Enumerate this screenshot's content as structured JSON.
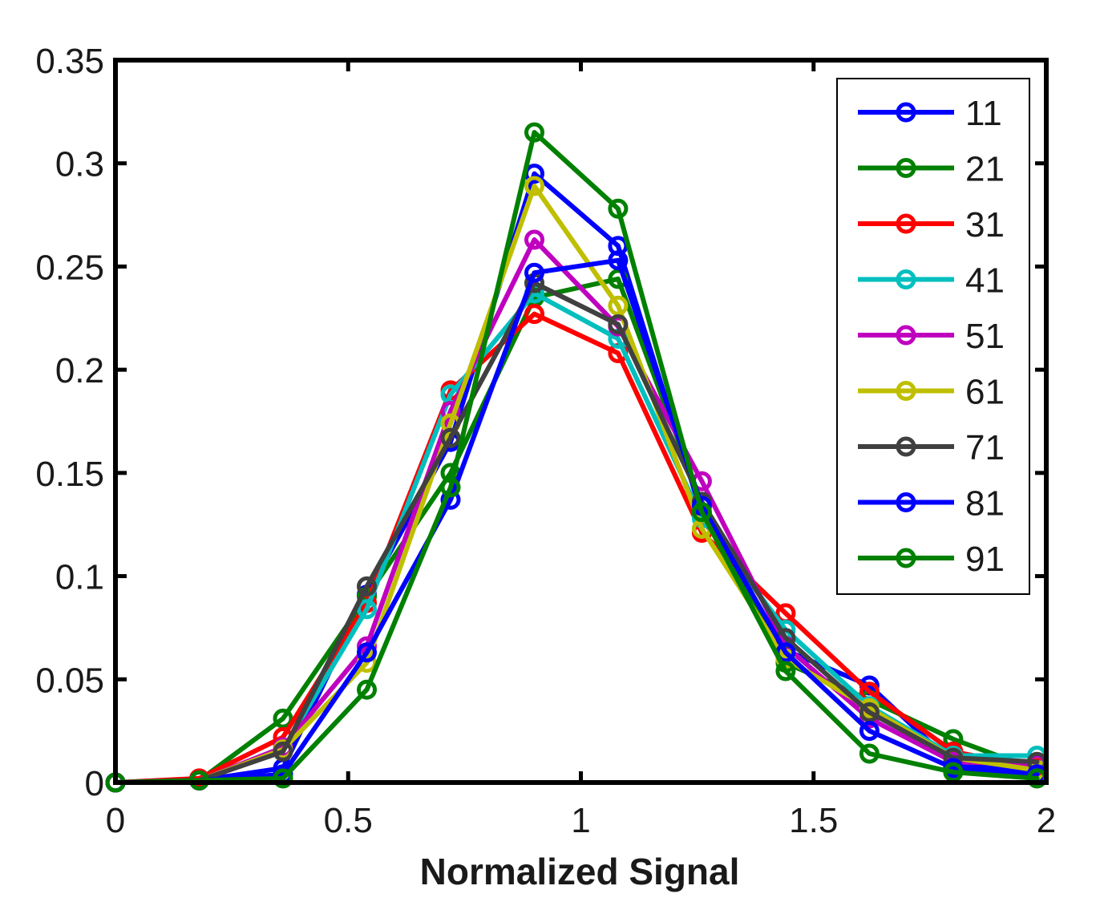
{
  "chart_data": {
    "type": "line",
    "title": "",
    "xlabel": "Normalized Signal",
    "ylabel": "",
    "xlim": [
      0,
      2
    ],
    "ylim": [
      0,
      0.35
    ],
    "xticks": [
      0,
      0.5,
      1,
      1.5,
      2
    ],
    "xtick_labels": [
      "0",
      "0.5",
      "1",
      "1.5",
      "2"
    ],
    "yticks": [
      0,
      0.05,
      0.1,
      0.15,
      0.2,
      0.25,
      0.3,
      0.35
    ],
    "ytick_labels": [
      "0",
      "0.05",
      "0.1",
      "0.15",
      "0.2",
      "0.25",
      "0.3",
      "0.35"
    ],
    "grid": false,
    "legend_position": "top-right",
    "x": [
      0,
      0.18,
      0.36,
      0.54,
      0.72,
      0.9,
      1.08,
      1.26,
      1.44,
      1.62,
      1.8,
      1.98
    ],
    "series": [
      {
        "name": "11",
        "color": "#0000ff",
        "values": [
          0,
          0.001,
          0.007,
          0.091,
          0.165,
          0.295,
          0.26,
          0.13,
          0.064,
          0.047,
          0.009,
          0.006
        ]
      },
      {
        "name": "21",
        "color": "#008000",
        "values": [
          0,
          0.001,
          0.031,
          0.09,
          0.15,
          0.235,
          0.244,
          0.135,
          0.058,
          0.04,
          0.021,
          0.006
        ]
      },
      {
        "name": "31",
        "color": "#ff0000",
        "values": [
          0,
          0.002,
          0.022,
          0.087,
          0.19,
          0.227,
          0.208,
          0.121,
          0.082,
          0.044,
          0.015,
          0.007
        ]
      },
      {
        "name": "41",
        "color": "#00bfbf",
        "values": [
          0,
          0.001,
          0.016,
          0.084,
          0.188,
          0.237,
          0.215,
          0.128,
          0.074,
          0.037,
          0.013,
          0.013
        ]
      },
      {
        "name": "51",
        "color": "#bf00bf",
        "values": [
          0,
          0.001,
          0.017,
          0.066,
          0.18,
          0.263,
          0.221,
          0.146,
          0.066,
          0.031,
          0.01,
          0.009
        ]
      },
      {
        "name": "61",
        "color": "#bfbf00",
        "values": [
          0,
          0.001,
          0.016,
          0.058,
          0.174,
          0.289,
          0.231,
          0.123,
          0.06,
          0.036,
          0.012,
          0.006
        ]
      },
      {
        "name": "71",
        "color": "#404040",
        "values": [
          0,
          0.001,
          0.015,
          0.095,
          0.167,
          0.242,
          0.222,
          0.136,
          0.07,
          0.034,
          0.012,
          0.01
        ]
      },
      {
        "name": "81",
        "color": "#0000ff",
        "values": [
          0,
          0.001,
          0.004,
          0.063,
          0.137,
          0.247,
          0.253,
          0.134,
          0.063,
          0.025,
          0.007,
          0.004
        ]
      },
      {
        "name": "91",
        "color": "#008000",
        "values": [
          0,
          0.001,
          0.002,
          0.045,
          0.143,
          0.315,
          0.278,
          0.131,
          0.054,
          0.014,
          0.005,
          0.002
        ]
      }
    ]
  }
}
